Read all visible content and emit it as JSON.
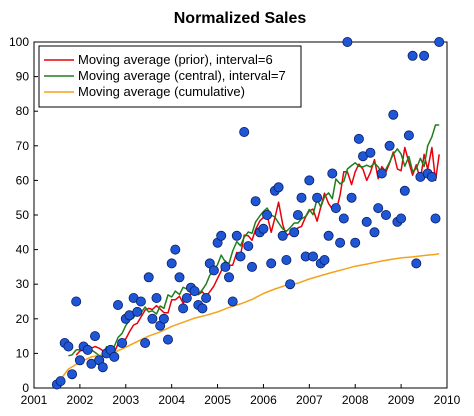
{
  "chart_data": {
    "type": "scatter",
    "title": "Normalized Sales",
    "xlabel": "",
    "ylabel": "",
    "xlim": [
      2001,
      2010
    ],
    "ylim": [
      0,
      100
    ],
    "x_ticks": [
      2001,
      2002,
      2003,
      2004,
      2005,
      2006,
      2007,
      2008,
      2009,
      2010
    ],
    "y_ticks": [
      0,
      10,
      20,
      30,
      40,
      50,
      60,
      70,
      80,
      90,
      100
    ],
    "grid": false,
    "legend_position": "top-left",
    "points": {
      "color": "#1f56d6",
      "x": [
        2001.5,
        2001.58,
        2001.67,
        2001.75,
        2001.83,
        2001.92,
        2002.0,
        2002.08,
        2002.17,
        2002.25,
        2002.33,
        2002.42,
        2002.5,
        2002.58,
        2002.67,
        2002.75,
        2002.83,
        2002.92,
        2003.0,
        2003.08,
        2003.17,
        2003.25,
        2003.33,
        2003.42,
        2003.5,
        2003.58,
        2003.67,
        2003.75,
        2003.83,
        2003.92,
        2004.0,
        2004.08,
        2004.17,
        2004.25,
        2004.33,
        2004.42,
        2004.5,
        2004.58,
        2004.67,
        2004.75,
        2004.83,
        2004.92,
        2005.0,
        2005.08,
        2005.17,
        2005.25,
        2005.33,
        2005.42,
        2005.5,
        2005.58,
        2005.67,
        2005.75,
        2005.83,
        2005.92,
        2006.0,
        2006.08,
        2006.17,
        2006.25,
        2006.33,
        2006.42,
        2006.5,
        2006.58,
        2006.67,
        2006.75,
        2006.83,
        2006.92,
        2007.0,
        2007.08,
        2007.17,
        2007.25,
        2007.33,
        2007.42,
        2007.5,
        2007.58,
        2007.67,
        2007.75,
        2007.83,
        2007.92,
        2008.0,
        2008.08,
        2008.17,
        2008.25,
        2008.33,
        2008.42,
        2008.5,
        2008.58,
        2008.67,
        2008.75,
        2008.83,
        2008.92,
        2009.0,
        2009.08,
        2009.17,
        2009.25,
        2009.33,
        2009.42,
        2009.5,
        2009.58,
        2009.67,
        2009.75,
        2009.83
      ],
      "y": [
        1,
        2,
        13,
        12,
        4,
        25,
        8,
        12,
        11,
        7,
        15,
        8,
        6,
        10,
        11,
        9,
        24,
        13,
        20,
        21,
        26,
        22,
        25,
        13,
        32,
        20,
        26,
        18,
        20,
        14,
        36,
        40,
        32,
        23,
        26,
        29,
        28,
        24,
        23,
        26,
        36,
        34,
        42,
        44,
        35,
        32,
        25,
        44,
        38,
        74,
        41,
        35,
        54,
        45,
        46,
        50,
        36,
        57,
        58,
        44,
        37,
        30,
        45,
        50,
        55,
        38,
        60,
        38,
        55,
        36,
        37,
        44,
        62,
        52,
        42,
        49,
        100,
        55,
        42,
        72,
        67,
        48,
        68,
        45,
        52,
        62,
        50,
        70,
        79,
        48,
        49,
        57,
        73,
        96,
        36,
        61,
        96,
        62,
        61,
        49,
        100
      ]
    },
    "series": [
      {
        "name": "Moving average (prior), interval=6",
        "color": "#e8000b",
        "x": [
          2001.92,
          2002.0,
          2002.08,
          2002.17,
          2002.25,
          2002.33,
          2002.42,
          2002.5,
          2002.58,
          2002.67,
          2002.75,
          2002.83,
          2002.92,
          2003.0,
          2003.08,
          2003.17,
          2003.25,
          2003.33,
          2003.42,
          2003.5,
          2003.58,
          2003.67,
          2003.75,
          2003.83,
          2003.92,
          2004.0,
          2004.08,
          2004.17,
          2004.25,
          2004.33,
          2004.42,
          2004.5,
          2004.58,
          2004.67,
          2004.75,
          2004.83,
          2004.92,
          2005.0,
          2005.08,
          2005.17,
          2005.25,
          2005.33,
          2005.42,
          2005.5,
          2005.58,
          2005.67,
          2005.75,
          2005.83,
          2005.92,
          2006.0,
          2006.08,
          2006.17,
          2006.25,
          2006.33,
          2006.42,
          2006.5,
          2006.58,
          2006.67,
          2006.75,
          2006.83,
          2006.92,
          2007.0,
          2007.08,
          2007.17,
          2007.25,
          2007.33,
          2007.42,
          2007.5,
          2007.58,
          2007.67,
          2007.75,
          2007.83,
          2007.92,
          2008.0,
          2008.08,
          2008.17,
          2008.25,
          2008.33,
          2008.42,
          2008.5,
          2008.58,
          2008.67,
          2008.75,
          2008.83,
          2008.92,
          2009.0,
          2009.08,
          2009.17,
          2009.25,
          2009.33,
          2009.42,
          2009.5,
          2009.58,
          2009.67,
          2009.75,
          2009.83
        ],
        "y": [
          9.5,
          10.7,
          11.0,
          11.7,
          11.5,
          12.0,
          11.5,
          10.8,
          9.8,
          9.8,
          10.3,
          12.7,
          13.5,
          14.2,
          16.2,
          18.2,
          18.7,
          20.5,
          22.5,
          23.0,
          22.7,
          23.8,
          22.8,
          21.8,
          21.7,
          25.5,
          25.5,
          26.5,
          24.5,
          25.8,
          27.3,
          29.0,
          27.0,
          27.8,
          26.5,
          27.8,
          29.5,
          31.7,
          33.8,
          36.7,
          35.5,
          35.5,
          39.2,
          38.3,
          44.2,
          44.0,
          42.7,
          45.8,
          48.3,
          49.3,
          50.0,
          45.0,
          49.2,
          53.7,
          47.3,
          44.0,
          44.7,
          44.3,
          46.3,
          46.7,
          49.5,
          51.2,
          51.7,
          48.2,
          52.3,
          56.3,
          53.3,
          51.7,
          50.8,
          55.8,
          62.5,
          62.5,
          58.8,
          62.5,
          64.7,
          63.2,
          60.0,
          62.3,
          66.0,
          60.5,
          64.0,
          62.5,
          65.0,
          68.2,
          63.3,
          62.8,
          69.5,
          65.2,
          61.5,
          64.5,
          60.0,
          67.5,
          63.2,
          69.5,
          60.0,
          67.5
        ]
      },
      {
        "name": "Moving average (central), interval=7",
        "color": "#1e7f1e",
        "x": [
          2001.75,
          2001.83,
          2001.92,
          2002.0,
          2002.08,
          2002.17,
          2002.25,
          2002.33,
          2002.42,
          2002.5,
          2002.58,
          2002.67,
          2002.75,
          2002.83,
          2002.92,
          2003.0,
          2003.08,
          2003.17,
          2003.25,
          2003.33,
          2003.42,
          2003.5,
          2003.58,
          2003.67,
          2003.75,
          2003.83,
          2003.92,
          2004.0,
          2004.08,
          2004.17,
          2004.25,
          2004.33,
          2004.42,
          2004.5,
          2004.58,
          2004.67,
          2004.75,
          2004.83,
          2004.92,
          2005.0,
          2005.08,
          2005.17,
          2005.25,
          2005.33,
          2005.42,
          2005.5,
          2005.58,
          2005.67,
          2005.75,
          2005.83,
          2005.92,
          2006.0,
          2006.08,
          2006.17,
          2006.25,
          2006.33,
          2006.42,
          2006.5,
          2006.58,
          2006.67,
          2006.75,
          2006.83,
          2006.92,
          2007.0,
          2007.08,
          2007.17,
          2007.25,
          2007.33,
          2007.42,
          2007.5,
          2007.58,
          2007.67,
          2007.75,
          2007.83,
          2007.92,
          2008.0,
          2008.08,
          2008.17,
          2008.25,
          2008.33,
          2008.42,
          2008.5,
          2008.58,
          2008.67,
          2008.75,
          2008.83,
          2008.92,
          2009.0,
          2009.08,
          2009.17,
          2009.25,
          2009.33,
          2009.42,
          2009.5,
          2009.58,
          2009.67,
          2009.75,
          2009.83
        ],
        "y": [
          9.3,
          9.6,
          11.0,
          11.1,
          11.6,
          12.3,
          11.0,
          10.3,
          9.4,
          9.3,
          11.9,
          11.0,
          12.0,
          14.6,
          15.8,
          18.1,
          19.6,
          20.3,
          22.4,
          21.7,
          23.4,
          22.0,
          22.3,
          21.4,
          23.7,
          23.0,
          26.9,
          26.3,
          28.0,
          27.0,
          29.1,
          28.6,
          28.1,
          27.1,
          27.1,
          28.4,
          30.0,
          32.6,
          34.0,
          35.7,
          38.4,
          36.4,
          36.0,
          39.6,
          42.3,
          41.1,
          43.6,
          45.1,
          44.7,
          48.0,
          49.7,
          51.0,
          52.0,
          50.0,
          49.4,
          47.7,
          46.0,
          45.3,
          46.3,
          47.7,
          47.7,
          48.9,
          49.6,
          51.6,
          50.1,
          54.6,
          52.3,
          55.3,
          56.4,
          54.7,
          60.4,
          59.0,
          59.7,
          63.3,
          64.3,
          65.1,
          64.1,
          63.9,
          64.4,
          63.9,
          65.0,
          63.9,
          62.0,
          63.3,
          65.3,
          67.6,
          69.1,
          67.6,
          64.1,
          66.9,
          62.6,
          63.4,
          66.4,
          64.0,
          70.0,
          72.6,
          76.0,
          76.0
        ]
      },
      {
        "name": "Moving average (cumulative)",
        "color": "#f5a21a",
        "x": [
          2001.5,
          2001.75,
          2002.0,
          2002.25,
          2002.5,
          2002.75,
          2003.0,
          2003.25,
          2003.5,
          2003.75,
          2004.0,
          2004.25,
          2004.5,
          2004.75,
          2005.0,
          2005.25,
          2005.5,
          2005.75,
          2006.0,
          2006.25,
          2006.5,
          2006.75,
          2007.0,
          2007.25,
          2007.5,
          2007.75,
          2008.0,
          2008.25,
          2008.5,
          2008.75,
          2009.0,
          2009.25,
          2009.5,
          2009.75,
          2009.83
        ],
        "y": [
          1.0,
          5.5,
          7.5,
          9.0,
          9.6,
          10.3,
          11.8,
          13.4,
          15.0,
          16.2,
          17.8,
          19.0,
          20.2,
          21.0,
          22.0,
          23.3,
          24.3,
          25.6,
          27.3,
          28.6,
          29.7,
          30.3,
          31.5,
          32.5,
          33.4,
          34.3,
          35.2,
          35.8,
          36.5,
          37.1,
          37.6,
          37.9,
          38.3,
          38.6,
          38.8
        ]
      }
    ]
  }
}
